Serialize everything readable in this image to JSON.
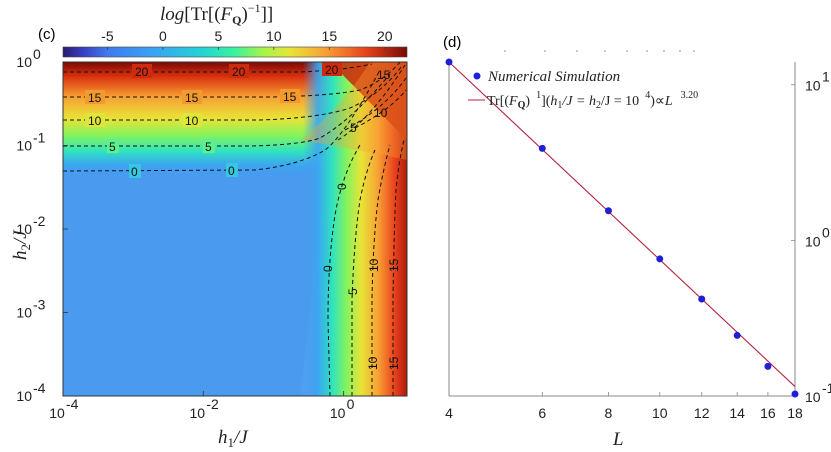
{
  "chart_data": [
    {
      "panel": "(c)",
      "type": "heatmap",
      "colorbar": {
        "title": "log[Tr[(F_Q)^-1]]",
        "title_parts": {
          "fn": "log",
          "tr": "Tr",
          "sup": "−1"
        },
        "range": [
          -9,
          22
        ],
        "ticks": [
          -5,
          0,
          5,
          10,
          15,
          20
        ],
        "tick_labels": [
          "-5",
          "0",
          "5",
          "10",
          "15",
          "20"
        ]
      },
      "xlabel": "h_1/J",
      "ylabel": "h_2/J",
      "x_scale": "log",
      "y_scale": "log",
      "xlim": [
        0.0001,
        8
      ],
      "ylim": [
        0.0001,
        1
      ],
      "x_ticks": [
        0.0001,
        0.01,
        1
      ],
      "y_ticks": [
        0.0001,
        0.001,
        0.01,
        0.1,
        1
      ],
      "contour_levels": [
        0,
        5,
        10,
        15,
        20
      ],
      "contour_label_text": [
        "20",
        "20",
        "20",
        "15",
        "15",
        "15",
        "15",
        "10",
        "10",
        "10",
        "5",
        "5",
        "5",
        "0",
        "0",
        "0",
        "0",
        "5",
        "10",
        "15",
        "10",
        "15"
      ]
    },
    {
      "panel": "(d)",
      "type": "line",
      "xlabel": "L",
      "x_scale": "log",
      "y_scale": "log",
      "xlim": [
        4,
        18
      ],
      "ylim": [
        0.1,
        14
      ],
      "x_ticks": [
        4,
        6,
        8,
        10,
        12,
        14,
        16,
        18
      ],
      "y_ticks": [
        0.1,
        1,
        10
      ],
      "y_tick_labels": [
        "10",
        "10",
        "10"
      ],
      "y_tick_exponents": [
        "-1",
        "0",
        "1"
      ],
      "series": [
        {
          "name": "Numerical Simulation",
          "style": "markers",
          "color": "#1f1fd8",
          "x": [
            4,
            6,
            8,
            10,
            12,
            14,
            16,
            18
          ],
          "y": [
            14.0,
            3.9,
            1.55,
            0.76,
            0.42,
            0.245,
            0.155,
            0.103
          ]
        },
        {
          "name": "fit",
          "style": "line",
          "color": "#b8203a",
          "exponent": 3.2,
          "x": [
            4,
            18
          ],
          "y": [
            14.0,
            0.115
          ]
        }
      ],
      "legend": {
        "entries": [
          {
            "label": "Numerical Simulation"
          },
          {
            "label": "Tr[(F_Q)^-1](h_1/J = h_2/J = 10^-4) ∝ L^-3.20",
            "parts": {
              "a": "Tr[(",
              "b": ")",
              "c": "1",
              "d": "](",
              "e": "h",
              "f": "1",
              "g": "/J = h",
              "h": "2",
              "i": "/J = 10",
              "j": "4",
              "k": ")∝",
              "l": "L",
              "m": "3.20"
            }
          }
        ]
      }
    }
  ]
}
